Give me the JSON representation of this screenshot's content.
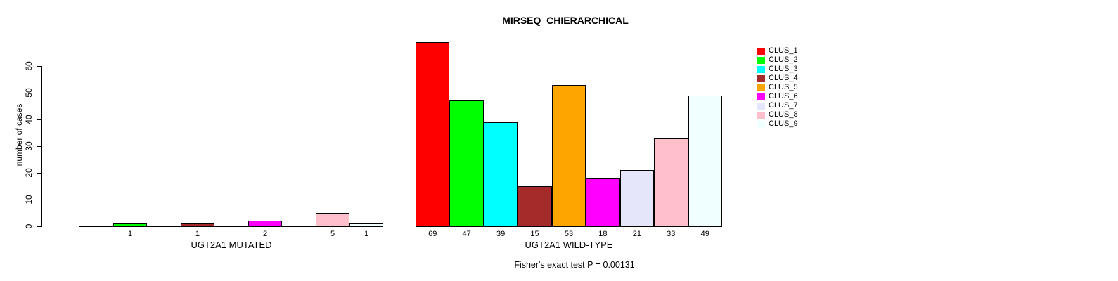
{
  "title": "MIRSEQ_CHIERARCHICAL",
  "y_axis": {
    "label": "number of cases",
    "ticks": [
      0,
      10,
      20,
      30,
      40,
      50,
      60
    ]
  },
  "footnote": "Fisher's exact test P = 0.00131",
  "chart_data": {
    "type": "bar",
    "title": "MIRSEQ_CHIERARCHICAL",
    "ylabel": "number of cases",
    "xlabel_groups": [
      "UGT2A1 MUTATED",
      "UGT2A1 WILD-TYPE"
    ],
    "ylim": [
      0,
      69
    ],
    "yticks": [
      0,
      10,
      20,
      30,
      40,
      50,
      60
    ],
    "grid": false,
    "legend_position": "right",
    "categories": [
      "CLUS_1",
      "CLUS_2",
      "CLUS_3",
      "CLUS_4",
      "CLUS_5",
      "CLUS_6",
      "CLUS_7",
      "CLUS_8",
      "CLUS_9"
    ],
    "colors": [
      "#FF0000",
      "#00FF00",
      "#00FFFF",
      "#A52A2A",
      "#FFA500",
      "#FF00FF",
      "#E6E6FA",
      "#FFC0CB",
      "#F0FFFF"
    ],
    "groups": [
      {
        "label": "UGT2A1 MUTATED",
        "values": [
          0,
          1,
          0,
          1,
          0,
          2,
          0,
          5,
          1
        ]
      },
      {
        "label": "UGT2A1 WILD-TYPE",
        "values": [
          69,
          47,
          39,
          15,
          53,
          18,
          21,
          33,
          49
        ]
      }
    ],
    "bar_value_labels_shown_only_when_nonzero": true,
    "annotation": "Fisher's exact test P = 0.00131"
  },
  "legend": {
    "entries": [
      {
        "label": "CLUS_1",
        "color": "#FF0000"
      },
      {
        "label": "CLUS_2",
        "color": "#00FF00"
      },
      {
        "label": "CLUS_3",
        "color": "#00FFFF"
      },
      {
        "label": "CLUS_4",
        "color": "#A52A2A"
      },
      {
        "label": "CLUS_5",
        "color": "#FFA500"
      },
      {
        "label": "CLUS_6",
        "color": "#FF00FF"
      },
      {
        "label": "CLUS_7",
        "color": "#E6E6FA"
      },
      {
        "label": "CLUS_8",
        "color": "#FFC0CB"
      },
      {
        "label": "CLUS_9",
        "color": "#F0FFFF"
      }
    ]
  }
}
